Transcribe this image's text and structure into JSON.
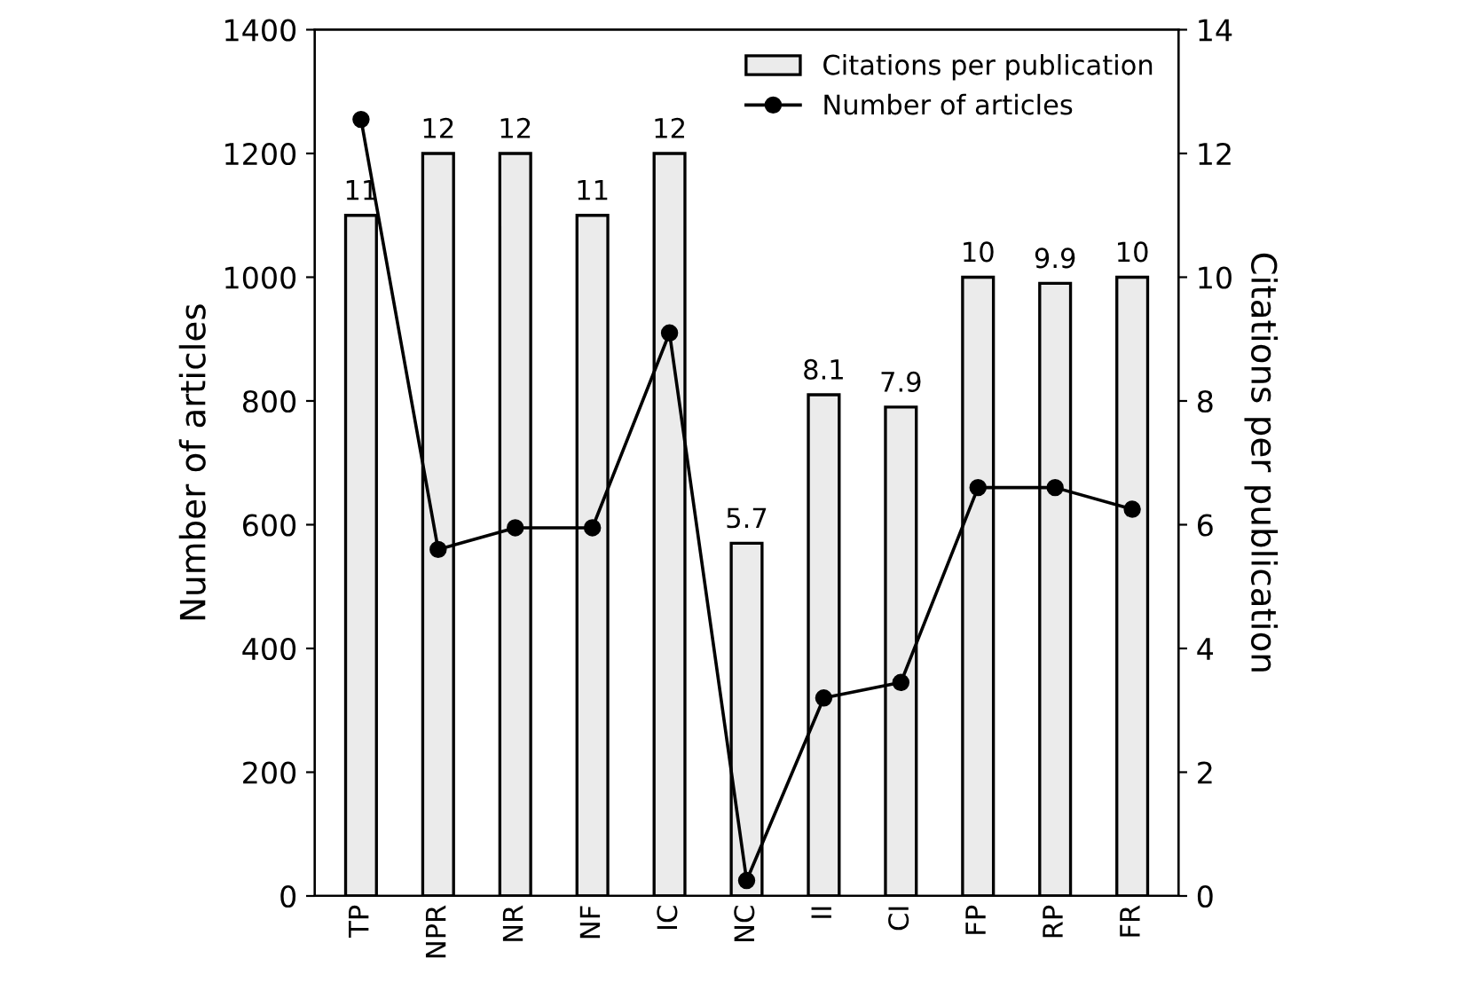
{
  "chart_data": {
    "type": "bar",
    "categories": [
      "TP",
      "NPR",
      "NR",
      "NF",
      "IC",
      "NC",
      "II",
      "CI",
      "FP",
      "RP",
      "FR"
    ],
    "series": [
      {
        "name": "Citations per publication",
        "axis": "y2",
        "color": "#ebebeb",
        "values": [
          11,
          12,
          12,
          11,
          12,
          5.7,
          8.1,
          7.9,
          10,
          9.9,
          10
        ],
        "value_labels": [
          "11",
          "12",
          "12",
          "11",
          "12",
          "5.7",
          "8.1",
          "7.9",
          "10",
          "9.9",
          "10"
        ]
      },
      {
        "name": "Number of articles",
        "type": "line",
        "axis": "y",
        "color": "#000000",
        "marker": "circle",
        "values": [
          1255,
          560,
          595,
          595,
          910,
          25,
          320,
          345,
          660,
          660,
          625
        ]
      }
    ],
    "ylabel": "Number of articles",
    "y2label": "Citations per publication",
    "ylim": [
      0,
      1400
    ],
    "yticks": [
      0,
      200,
      400,
      600,
      800,
      1000,
      1200,
      1400
    ],
    "y2lim": [
      0,
      14
    ],
    "y2ticks": [
      0,
      2,
      4,
      6,
      8,
      10,
      12,
      14
    ],
    "legend": "top right",
    "grid": false
  }
}
